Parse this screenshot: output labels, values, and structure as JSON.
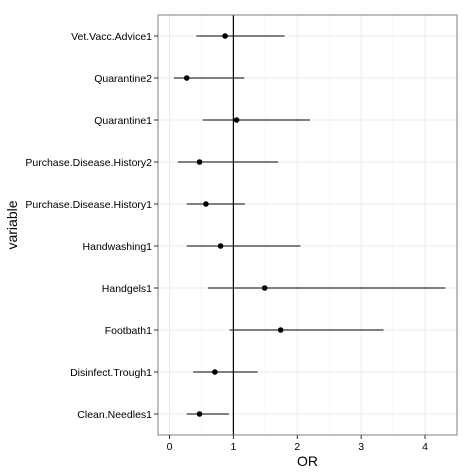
{
  "chart_data": {
    "type": "forest",
    "xlabel": "OR",
    "ylabel": "variable",
    "xlim": [
      -0.18,
      4.5
    ],
    "xticks": [
      0,
      1,
      2,
      3,
      4
    ],
    "x_tick_labels": [
      "0",
      "1",
      "2",
      "3",
      "4"
    ],
    "reference_line_x": 1,
    "grid": true,
    "legend": "none",
    "rows": [
      {
        "variable": "Vet.Vacc.Advice1",
        "or": 0.87,
        "low": 0.42,
        "high": 1.8
      },
      {
        "variable": "Quarantine2",
        "or": 0.27,
        "low": 0.07,
        "high": 1.17
      },
      {
        "variable": "Quarantine1",
        "or": 1.05,
        "low": 0.52,
        "high": 2.2
      },
      {
        "variable": "Purchase.Disease.History2",
        "or": 0.47,
        "low": 0.13,
        "high": 1.7
      },
      {
        "variable": "Purchase.Disease.History1",
        "or": 0.57,
        "low": 0.27,
        "high": 1.18
      },
      {
        "variable": "Handwashing1",
        "or": 0.8,
        "low": 0.27,
        "high": 2.05
      },
      {
        "variable": "Handgels1",
        "or": 1.49,
        "low": 0.6,
        "high": 4.32
      },
      {
        "variable": "Footbath1",
        "or": 1.74,
        "low": 0.94,
        "high": 3.35
      },
      {
        "variable": "Disinfect.Trough1",
        "or": 0.71,
        "low": 0.37,
        "high": 1.38
      },
      {
        "variable": "Clean.Needles1",
        "or": 0.47,
        "low": 0.27,
        "high": 0.93
      }
    ]
  },
  "colors": {
    "panel_background": "#ffffff",
    "panel_border": "#7f7f7f",
    "major_grid": "#ebebeb",
    "minor_grid": "#f5f5f5",
    "mark": "#000000",
    "tick": "#333333"
  }
}
